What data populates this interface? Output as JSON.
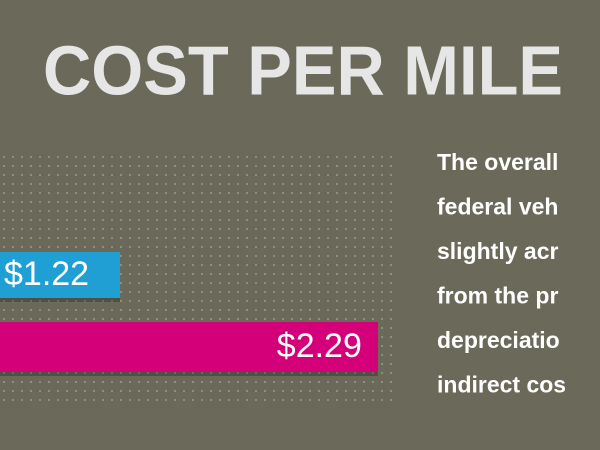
{
  "chart_data": {
    "type": "hbar",
    "title": "COST PER MILE",
    "values": [
      1.22,
      2.29
    ],
    "value_labels": [
      "$1.22",
      "$2.29"
    ],
    "colors": [
      "#1f9fd4",
      "#d4007a"
    ],
    "annotation_lines": [
      "The overall",
      "federal veh",
      "slightly acr",
      "from the pr",
      "depreciatio",
      "indirect cos"
    ]
  }
}
